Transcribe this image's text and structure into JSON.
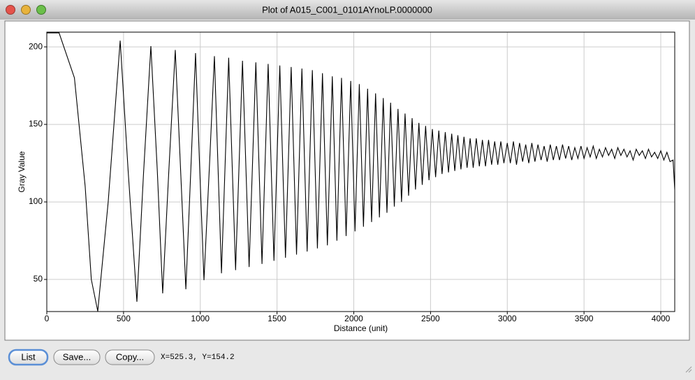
{
  "window": {
    "title": "Plot of A015_C001_0101AYnoLP.0000000"
  },
  "chart_data": {
    "type": "line",
    "x_label": "Distance (unit)",
    "y_label": "Gray Value",
    "color": "#000000",
    "grid": true,
    "xlim": [
      0,
      4091
    ],
    "ylim": [
      29.3,
      209.5
    ],
    "xticks": [
      0,
      500,
      1000,
      1500,
      2000,
      2500,
      3000,
      3500,
      4000
    ],
    "yticks": [
      50,
      100,
      150,
      200
    ],
    "x": [
      0,
      80,
      180,
      250,
      290,
      332,
      400,
      478,
      530,
      587,
      630,
      678,
      720,
      755,
      795,
      837,
      872,
      906,
      938,
      969,
      996,
      1024,
      1060,
      1092,
      1138,
      1185,
      1230,
      1275,
      1318,
      1362,
      1402,
      1442,
      1480,
      1518,
      1555,
      1592,
      1627,
      1662,
      1696,
      1730,
      1763,
      1796,
      1828,
      1860,
      1890,
      1920,
      1950,
      1980,
      2008,
      2036,
      2063,
      2090,
      2116,
      2142,
      2167,
      2192,
      2216,
      2240,
      2264,
      2288,
      2311,
      2334,
      2357,
      2380,
      2402,
      2424,
      2446,
      2468,
      2490,
      2512,
      2533,
      2554,
      2575,
      2596,
      2617,
      2638,
      2658,
      2678,
      2698,
      2718,
      2738,
      2758,
      2778,
      2798,
      2818,
      2838,
      2858,
      2878,
      2898,
      2918,
      2938,
      2958,
      2978,
      3000,
      3020,
      3040,
      3060,
      3080,
      3100,
      3120,
      3140,
      3160,
      3180,
      3200,
      3220,
      3240,
      3260,
      3280,
      3300,
      3320,
      3340,
      3360,
      3380,
      3400,
      3420,
      3440,
      3460,
      3480,
      3500,
      3520,
      3540,
      3560,
      3580,
      3600,
      3620,
      3640,
      3660,
      3680,
      3700,
      3720,
      3740,
      3760,
      3780,
      3800,
      3820,
      3840,
      3860,
      3880,
      3900,
      3920,
      3940,
      3960,
      3980,
      4000,
      4020,
      4040,
      4060,
      4080,
      4091
    ],
    "values": [
      209,
      209,
      180,
      110,
      50,
      29.5,
      100,
      204,
      120,
      35.6,
      118,
      200.5,
      120,
      41,
      120,
      198,
      120,
      43.7,
      120,
      196,
      122,
      49.5,
      124,
      194,
      54,
      193,
      56,
      191,
      58,
      190,
      60,
      189,
      62,
      188,
      64,
      187,
      66,
      186,
      68,
      185,
      70,
      183,
      72,
      181,
      75,
      180,
      78,
      178,
      81,
      176,
      84,
      173,
      87,
      170,
      90,
      167,
      93,
      164,
      97,
      160,
      100,
      157,
      104,
      154,
      108,
      151,
      111,
      149,
      114,
      147,
      116,
      146,
      118,
      145,
      119,
      144,
      120,
      143,
      121,
      142,
      122,
      141,
      122,
      141,
      123,
      140,
      123,
      140,
      124,
      139,
      124,
      139,
      125,
      138,
      125,
      139,
      124,
      138,
      126,
      137,
      125,
      138,
      126,
      137,
      127,
      136,
      126,
      137,
      127,
      136,
      127,
      137,
      128,
      136,
      127,
      135,
      128,
      136,
      128,
      135,
      129,
      136,
      128,
      134,
      129,
      135,
      130,
      134,
      128,
      135,
      130,
      134,
      129,
      133,
      127,
      134,
      130,
      133,
      128,
      134,
      129,
      132,
      128,
      133,
      127,
      132,
      126,
      127,
      108
    ]
  },
  "buttons": [
    "List",
    "Save...",
    "Copy..."
  ],
  "status": "X=525.3, Y=154.2"
}
